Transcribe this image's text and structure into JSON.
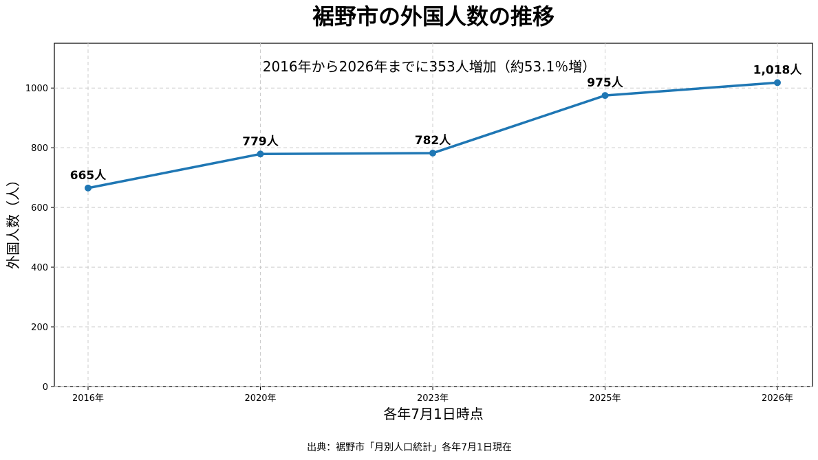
{
  "chart_data": {
    "type": "line",
    "title": "裾野市の外国人数の推移",
    "annotation": "2016年から2026年までに353人増加（約53.1％増）",
    "xlabel": "各年7月1日時点",
    "ylabel": "外国人数（人）",
    "categories": [
      "2016年",
      "2020年",
      "2023年",
      "2025年",
      "2026年"
    ],
    "series": [
      {
        "values": [
          665,
          779,
          782,
          975,
          1018
        ],
        "data_labels": [
          "665人",
          "779人",
          "782人",
          "975人",
          "1,018人"
        ],
        "color": "#1f77b4"
      }
    ],
    "ylim": [
      0,
      1150
    ],
    "yticks": [
      "0",
      "200",
      "400",
      "600",
      "800",
      "1000"
    ],
    "grid": true,
    "source": "出典：裾野市「月別人口統計」各年7月1日現在"
  }
}
